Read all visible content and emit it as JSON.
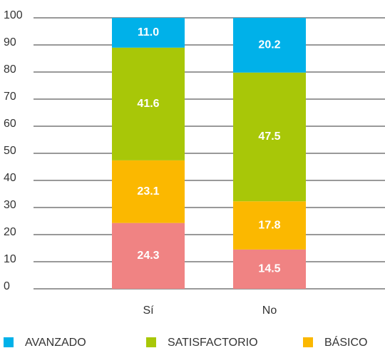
{
  "chart_data": {
    "type": "stacked_bar",
    "categories": [
      "Sí",
      "No"
    ],
    "series": [
      {
        "color": "#f08383",
        "values": [
          24.3,
          14.5
        ],
        "value_labels": [
          "24.3",
          "14.5"
        ]
      },
      {
        "name": "BÁSICO",
        "color": "#fbb800",
        "values": [
          23.1,
          17.8
        ],
        "value_labels": [
          "23.1",
          "17.8"
        ]
      },
      {
        "name": "SATISFACTORIO",
        "color": "#a8c708",
        "values": [
          41.6,
          47.5
        ],
        "value_labels": [
          "41.6",
          "47.5"
        ]
      },
      {
        "name": "AVANZADO",
        "color": "#00b1e9",
        "values": [
          11.0,
          20.2
        ],
        "value_labels": [
          "11.0",
          "20.2"
        ]
      }
    ],
    "ylim": [
      0,
      100
    ],
    "yticks": [
      0,
      10,
      20,
      30,
      40,
      50,
      60,
      70,
      80,
      90,
      100
    ],
    "grid": true
  }
}
